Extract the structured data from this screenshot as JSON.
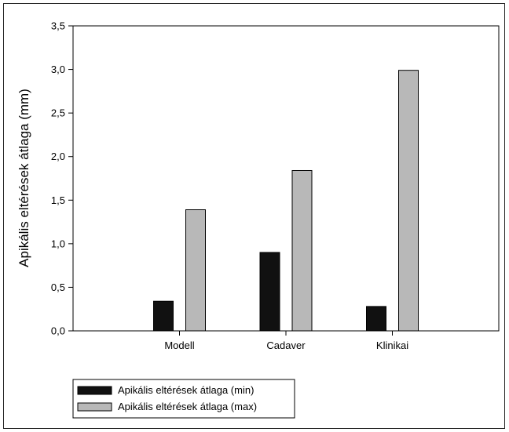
{
  "chart_data": {
    "type": "bar",
    "title": "",
    "xlabel": "",
    "ylabel": "Apikális eltérések átlaga (mm)",
    "categories": [
      "Modell",
      "Cadaver",
      "Klinikai"
    ],
    "series": [
      {
        "name": "Apikális eltérések átlaga (min)",
        "values": [
          0.34,
          0.9,
          0.28
        ],
        "color": "#111111"
      },
      {
        "name": "Apikális eltérések átlaga (max)",
        "values": [
          1.39,
          1.84,
          2.99
        ],
        "color": "#b8b8b8"
      }
    ],
    "ylim": [
      0,
      3.5
    ],
    "yticks": [
      "0,0",
      "0,5",
      "1,0",
      "1,5",
      "2,0",
      "2,5",
      "3,0",
      "3,5"
    ],
    "grid": false,
    "legend_position": "bottom-left"
  }
}
